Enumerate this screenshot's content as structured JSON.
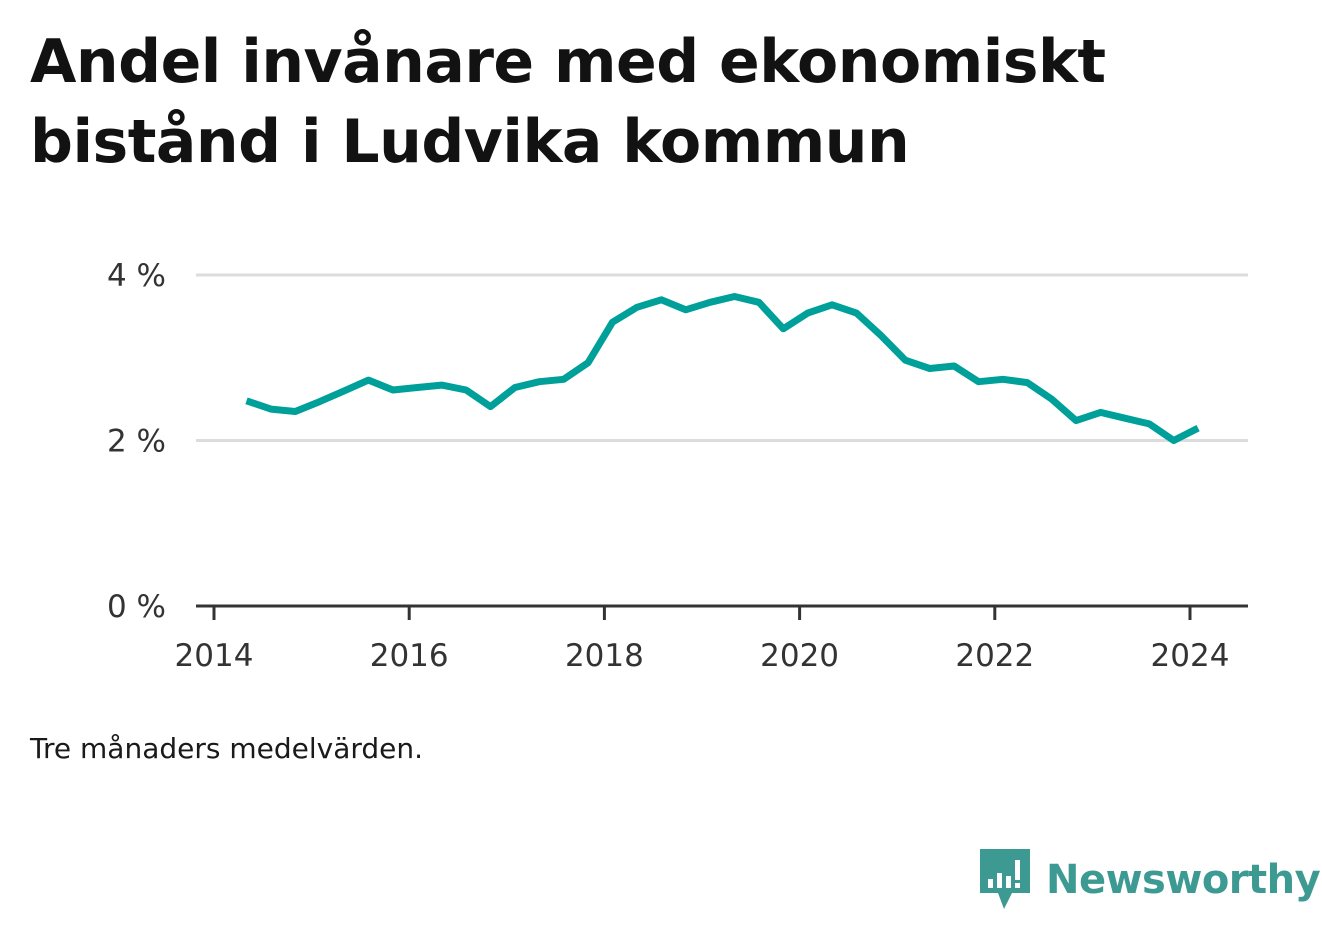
{
  "title": "Andel invånare med ekonomiskt bistånd i Ludvika kommun",
  "note": "Tre månaders medelvärden.",
  "brand": {
    "name": "Newsworthy",
    "icon": "newsworthy-logo-icon",
    "color": "#3d9a92"
  },
  "chart_data": {
    "type": "line",
    "title": "Andel invånare med ekonomiskt bistånd i Ludvika kommun",
    "xlabel": "",
    "ylabel": "",
    "x_ticks": [
      "2014",
      "2016",
      "2018",
      "2020",
      "2022",
      "2024"
    ],
    "y_ticks": [
      "0 %",
      "2 %",
      "4 %"
    ],
    "xlim": [
      "2014-01",
      "2024-12"
    ],
    "ylim": [
      0,
      4
    ],
    "grid": true,
    "line_color": "#00a09a",
    "series": [
      {
        "x": [
          "2014-05",
          "2014-08",
          "2014-11",
          "2015-02",
          "2015-05",
          "2015-08",
          "2015-11",
          "2016-02",
          "2016-05",
          "2016-08",
          "2016-11",
          "2017-02",
          "2017-05",
          "2017-08",
          "2017-11",
          "2018-02",
          "2018-05",
          "2018-08",
          "2018-11",
          "2019-02",
          "2019-05",
          "2019-08",
          "2019-11",
          "2020-02",
          "2020-05",
          "2020-08",
          "2020-11",
          "2021-02",
          "2021-05",
          "2021-08",
          "2021-11",
          "2022-02",
          "2022-05",
          "2022-08",
          "2022-11",
          "2023-02",
          "2023-05",
          "2023-08",
          "2023-11",
          "2024-02"
        ],
        "values": [
          2.48,
          2.38,
          2.35,
          2.47,
          2.6,
          2.73,
          2.61,
          2.64,
          2.67,
          2.61,
          2.41,
          2.64,
          2.71,
          2.74,
          2.94,
          3.43,
          3.61,
          3.7,
          3.58,
          3.67,
          3.74,
          3.67,
          3.35,
          3.54,
          3.64,
          3.54,
          3.27,
          2.97,
          2.87,
          2.9,
          2.71,
          2.74,
          2.7,
          2.5,
          2.24,
          2.34,
          2.27,
          2.2,
          2.0,
          2.15
        ]
      }
    ]
  }
}
